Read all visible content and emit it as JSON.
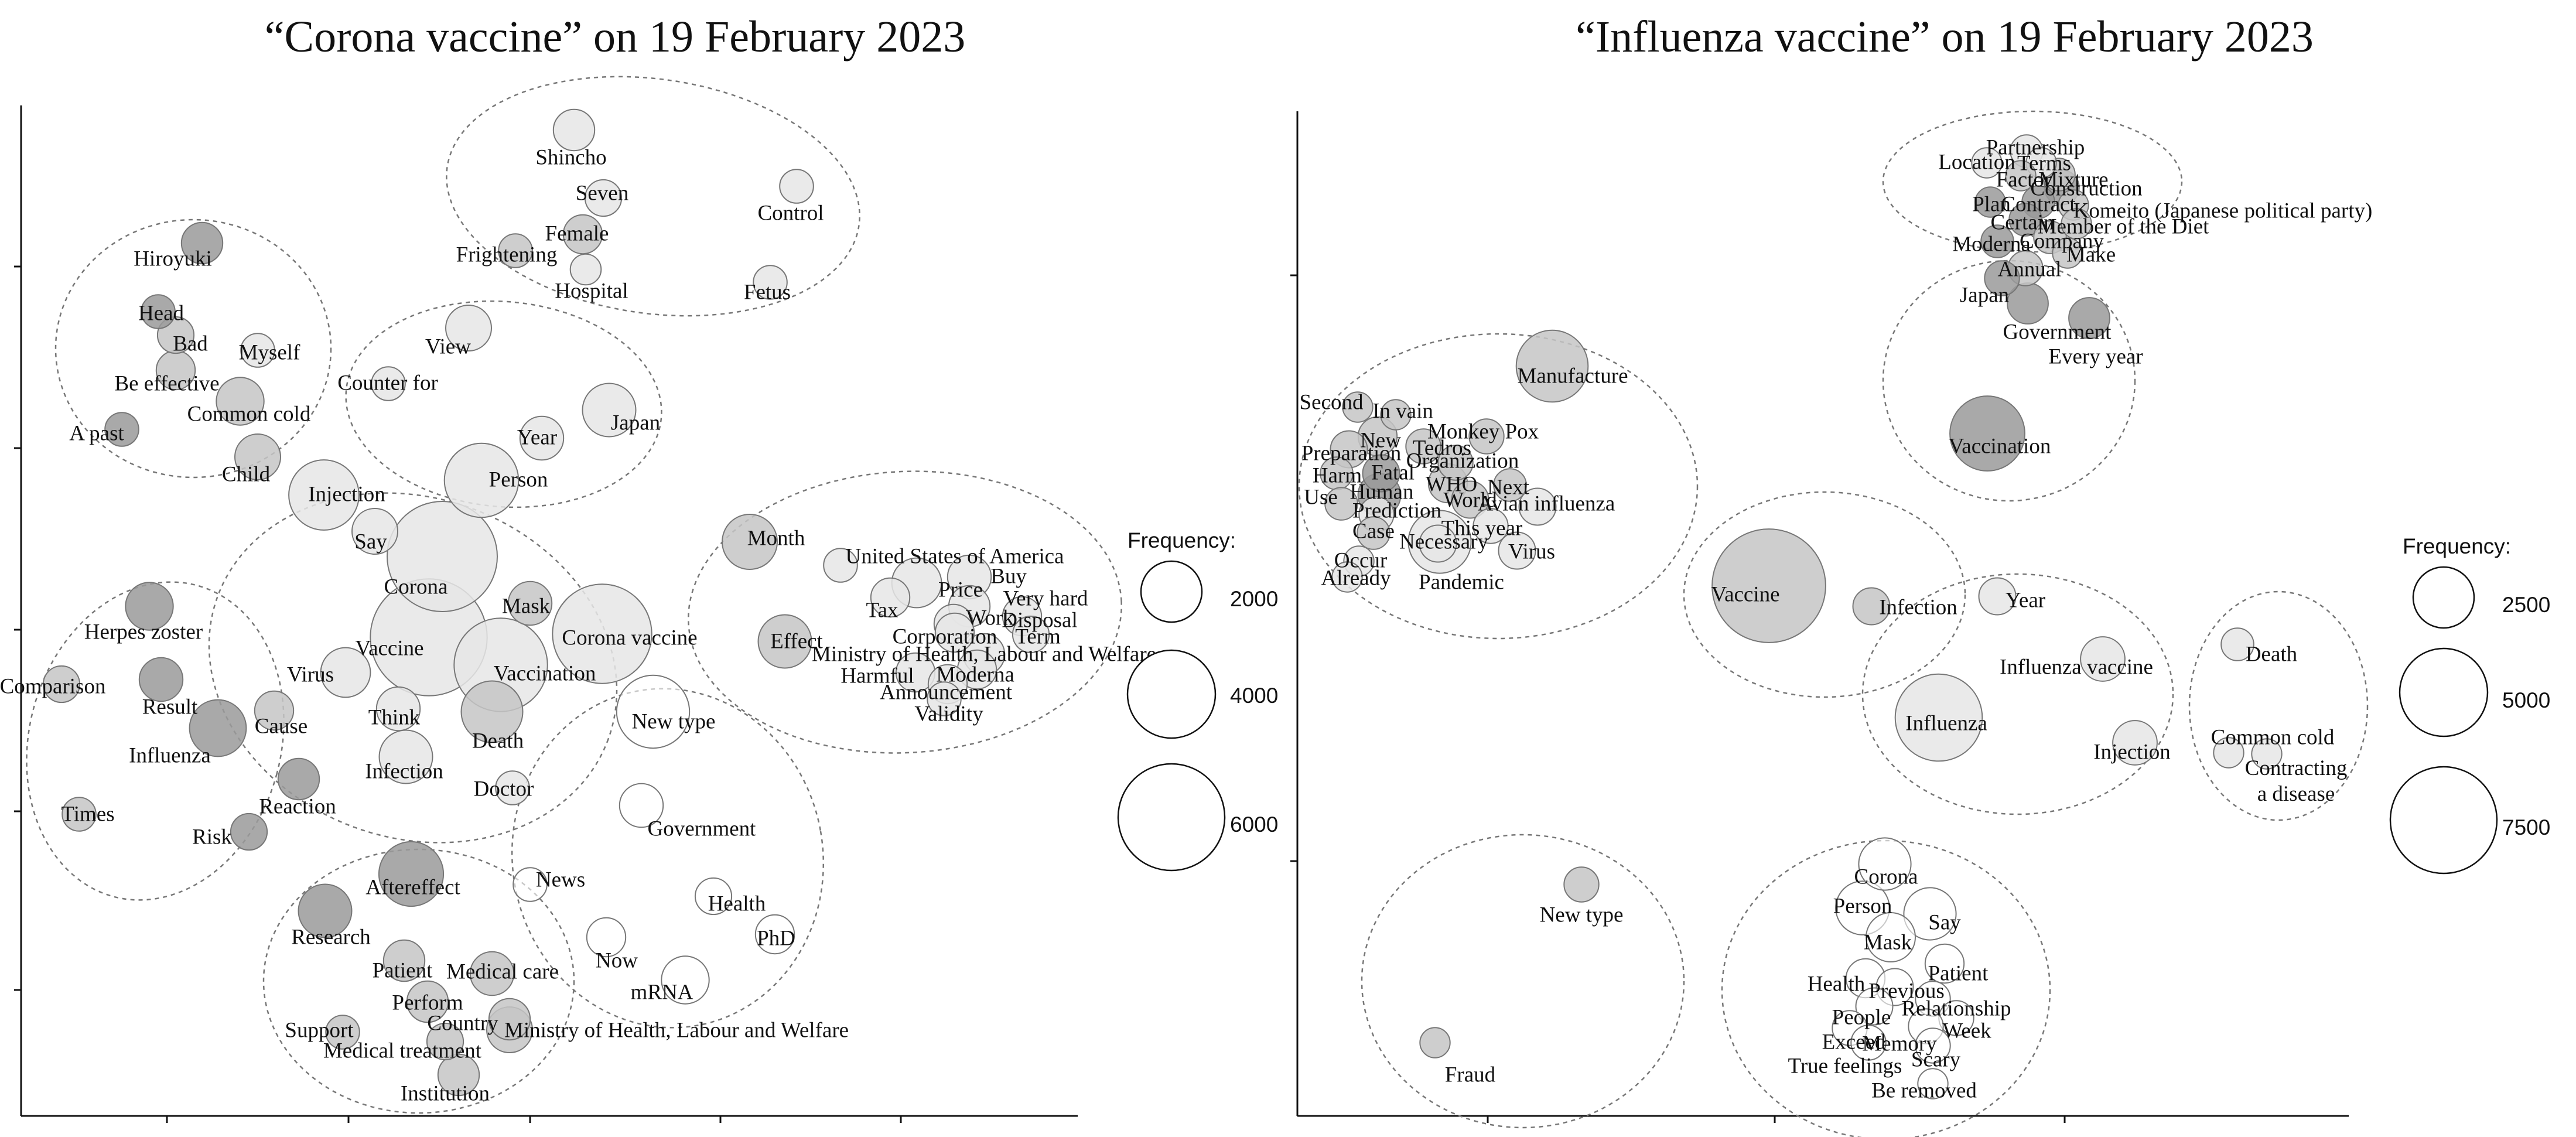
{
  "chart_data": [
    {
      "type": "bubble network",
      "title": "“Corona vaccine” on 19 February 2023",
      "legend_title": "Frequency:",
      "legend_values": [
        2000,
        4000,
        6000
      ],
      "fill_shades": {
        "high": "#9a9a9a",
        "mid": "#c6c6c6",
        "low": "#e6e6e6",
        "none": "#ffffff"
      },
      "words": [
        {
          "text": "Shincho",
          "freq": 900
        },
        {
          "text": "Seven",
          "freq": 700
        },
        {
          "text": "Control",
          "freq": 600
        },
        {
          "text": "Female",
          "freq": 800
        },
        {
          "text": "Frightening",
          "freq": 600
        },
        {
          "text": "Hospital",
          "freq": 500
        },
        {
          "text": "Fetus",
          "freq": 600
        },
        {
          "text": "Hiroyuki",
          "freq": 900
        },
        {
          "text": "Head",
          "freq": 600
        },
        {
          "text": "Bad",
          "freq": 700
        },
        {
          "text": "Myself",
          "freq": 600
        },
        {
          "text": "Be effective",
          "freq": 800
        },
        {
          "text": "Common cold",
          "freq": 1200
        },
        {
          "text": "A past",
          "freq": 600
        },
        {
          "text": "Child",
          "freq": 1100
        },
        {
          "text": "View",
          "freq": 1100
        },
        {
          "text": "Counter for",
          "freq": 600
        },
        {
          "text": "Year",
          "freq": 1000
        },
        {
          "text": "Japan",
          "freq": 1500
        },
        {
          "text": "Person",
          "freq": 2900
        },
        {
          "text": "Injection",
          "freq": 2600
        },
        {
          "text": "Say",
          "freq": 1100
        },
        {
          "text": "Corona",
          "freq": 6400
        },
        {
          "text": "Vaccine",
          "freq": 7200
        },
        {
          "text": "Mask",
          "freq": 1000
        },
        {
          "text": "Corona vaccine",
          "freq": 5200
        },
        {
          "text": "Vaccination",
          "freq": 4600
        },
        {
          "text": "Virus",
          "freq": 1300
        },
        {
          "text": "Think",
          "freq": 1000
        },
        {
          "text": "Infection",
          "freq": 1500
        },
        {
          "text": "Death",
          "freq": 2000
        },
        {
          "text": "Doctor",
          "freq": 600
        },
        {
          "text": "New type",
          "freq": 2800
        },
        {
          "text": "Month",
          "freq": 1600
        },
        {
          "text": "United States of America",
          "freq": 600
        },
        {
          "text": "Buy",
          "freq": 1000
        },
        {
          "text": "Price",
          "freq": 1300
        },
        {
          "text": "Very hard",
          "freq": 900
        },
        {
          "text": "Tax",
          "freq": 800
        },
        {
          "text": "Disposal",
          "freq": 800
        },
        {
          "text": "Work",
          "freq": 800
        },
        {
          "text": "Term",
          "freq": 700
        },
        {
          "text": "Corporation",
          "freq": 800
        },
        {
          "text": "Effect",
          "freq": 1500
        },
        {
          "text": "Ministry of Health, Labour and Welfare",
          "freq": 900
        },
        {
          "text": "Harmful",
          "freq": 800
        },
        {
          "text": "Moderna",
          "freq": 800
        },
        {
          "text": "Announcement",
          "freq": 800
        },
        {
          "text": "Validity",
          "freq": 600
        },
        {
          "text": "Herpes zoster",
          "freq": 1200
        },
        {
          "text": "Comparison",
          "freq": 700
        },
        {
          "text": "Result",
          "freq": 1000
        },
        {
          "text": "Influenza",
          "freq": 1700
        },
        {
          "text": "Cause",
          "freq": 800
        },
        {
          "text": "Times",
          "freq": 600
        },
        {
          "text": "Reaction",
          "freq": 900
        },
        {
          "text": "Risk",
          "freq": 700
        },
        {
          "text": "Government",
          "freq": 1000
        },
        {
          "text": "News",
          "freq": 600
        },
        {
          "text": "Health",
          "freq": 700
        },
        {
          "text": "PhD",
          "freq": 800
        },
        {
          "text": "Now",
          "freq": 800
        },
        {
          "text": "mRNA",
          "freq": 1200
        },
        {
          "text": "Aftereffect",
          "freq": 2200
        },
        {
          "text": "Research",
          "freq": 1500
        },
        {
          "text": "Patient",
          "freq": 900
        },
        {
          "text": "Medical care",
          "freq": 1000
        },
        {
          "text": "Perform",
          "freq": 900
        },
        {
          "text": "Country",
          "freq": 900
        },
        {
          "text": "Support",
          "freq": 600
        },
        {
          "text": "Ministry of Health, Labour and Welfare",
          "freq": 1100
        },
        {
          "text": "Medical treatment",
          "freq": 700
        },
        {
          "text": "Institution",
          "freq": 900
        }
      ]
    },
    {
      "type": "bubble network",
      "title": "“Influenza vaccine” on 19 February 2023",
      "legend_title": "Frequency:",
      "legend_values": [
        2500,
        5000,
        7500
      ],
      "words": [
        {
          "text": "Partnership",
          "freq": 700
        },
        {
          "text": "Location",
          "freq": 600
        },
        {
          "text": "Terms",
          "freq": 600
        },
        {
          "text": "Factor",
          "freq": 600
        },
        {
          "text": "Mixture",
          "freq": 700
        },
        {
          "text": "Construction",
          "freq": 800
        },
        {
          "text": "Plan",
          "freq": 600
        },
        {
          "text": "Contract",
          "freq": 700
        },
        {
          "text": "Komeito (Japanese political party)",
          "freq": 600
        },
        {
          "text": "Certain",
          "freq": 700
        },
        {
          "text": "Member of the Diet",
          "freq": 600
        },
        {
          "text": "Moderna",
          "freq": 700
        },
        {
          "text": "Company",
          "freq": 700
        },
        {
          "text": "Make",
          "freq": 600
        },
        {
          "text": "Annual",
          "freq": 800
        },
        {
          "text": "Japan",
          "freq": 800
        },
        {
          "text": "Government",
          "freq": 1100
        },
        {
          "text": "Every year",
          "freq": 1100
        },
        {
          "text": "Vaccination",
          "freq": 3700
        },
        {
          "text": "Manufacture",
          "freq": 3400
        },
        {
          "text": "Second",
          "freq": 600
        },
        {
          "text": "In vain",
          "freq": 600
        },
        {
          "text": "New",
          "freq": 1000
        },
        {
          "text": "Tedros",
          "freq": 800
        },
        {
          "text": "Monkey Pox",
          "freq": 800
        },
        {
          "text": "Preparation",
          "freq": 900
        },
        {
          "text": "Organization",
          "freq": 800
        },
        {
          "text": "Harm",
          "freq": 700
        },
        {
          "text": "Fatal",
          "freq": 900
        },
        {
          "text": "Human",
          "freq": 1200
        },
        {
          "text": "WHO",
          "freq": 1000
        },
        {
          "text": "Next",
          "freq": 700
        },
        {
          "text": "Use",
          "freq": 700
        },
        {
          "text": "World",
          "freq": 900
        },
        {
          "text": "Avian influenza",
          "freq": 900
        },
        {
          "text": "Prediction",
          "freq": 800
        },
        {
          "text": "This year",
          "freq": 800
        },
        {
          "text": "Case",
          "freq": 700
        },
        {
          "text": "Necessary",
          "freq": 900
        },
        {
          "text": "Virus",
          "freq": 900
        },
        {
          "text": "Occur",
          "freq": 600
        },
        {
          "text": "Pandemic",
          "freq": 2600
        },
        {
          "text": "Already",
          "freq": 600
        },
        {
          "text": "Vaccine",
          "freq": 8500
        },
        {
          "text": "Infection",
          "freq": 900
        },
        {
          "text": "Year",
          "freq": 900
        },
        {
          "text": "Influenza vaccine",
          "freq": 1300
        },
        {
          "text": "Influenza",
          "freq": 5000
        },
        {
          "text": "Injection",
          "freq": 1300
        },
        {
          "text": "Death",
          "freq": 700
        },
        {
          "text": "Common cold",
          "freq": 600
        },
        {
          "text": "Contracting a disease",
          "freq": 600
        },
        {
          "text": "New type",
          "freq": 800
        },
        {
          "text": "Fraud",
          "freq": 600
        },
        {
          "text": "Corona",
          "freq": 1800
        },
        {
          "text": "Person",
          "freq": 1900
        },
        {
          "text": "Say",
          "freq": 1800
        },
        {
          "text": "Mask",
          "freq": 1600
        },
        {
          "text": "Patient",
          "freq": 1000
        },
        {
          "text": "Health",
          "freq": 1000
        },
        {
          "text": "Previous",
          "freq": 900
        },
        {
          "text": "Relationship",
          "freq": 800
        },
        {
          "text": "People",
          "freq": 900
        },
        {
          "text": "Week",
          "freq": 800
        },
        {
          "text": "Exceed",
          "freq": 800
        },
        {
          "text": "Memory",
          "freq": 800
        },
        {
          "text": "True feelings",
          "freq": 800
        },
        {
          "text": "Scary",
          "freq": 800
        },
        {
          "text": "Be removed",
          "freq": 600
        }
      ]
    }
  ]
}
